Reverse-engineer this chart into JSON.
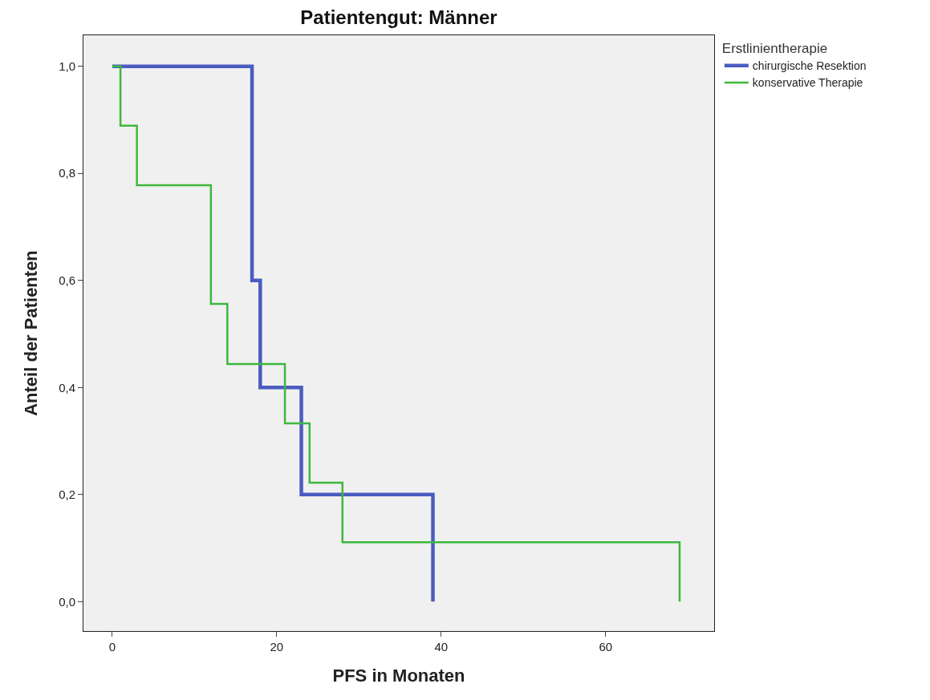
{
  "chart_data": {
    "type": "step",
    "title": "Patientengut: Männer",
    "xlabel": "PFS in Monaten",
    "ylabel": "Anteil der Patienten",
    "legend_title": "Erstlinientherapie",
    "series": [
      {
        "name": "chirurgische Resektion",
        "color": "#4a5cc0",
        "x": [
          0,
          17,
          18,
          23,
          39
        ],
        "values": [
          1,
          0.6,
          0.4,
          0.2,
          0
        ]
      },
      {
        "name": "konservative Therapie",
        "color": "#3db83d",
        "x": [
          0,
          1,
          3,
          12,
          14,
          21,
          24,
          28,
          69
        ],
        "values": [
          1,
          0.889,
          0.778,
          0.556,
          0.444,
          0.333,
          0.222,
          0.111,
          0
        ]
      }
    ],
    "xlim": [
      -3.5,
      73.2
    ],
    "xticks": [
      0,
      20,
      40,
      60
    ],
    "ylim": [
      -0.055,
      1.058
    ],
    "yticks": [
      {
        "value": 0,
        "label": "0,0"
      },
      {
        "value": 0.2,
        "label": "0,2"
      },
      {
        "value": 0.4,
        "label": "0,4"
      },
      {
        "value": 0.6,
        "label": "0,6"
      },
      {
        "value": 0.8,
        "label": "0,8"
      },
      {
        "value": 1,
        "label": "1,0"
      }
    ],
    "grid": false,
    "legend": "top right",
    "line_style": "solid",
    "marker": "none"
  }
}
